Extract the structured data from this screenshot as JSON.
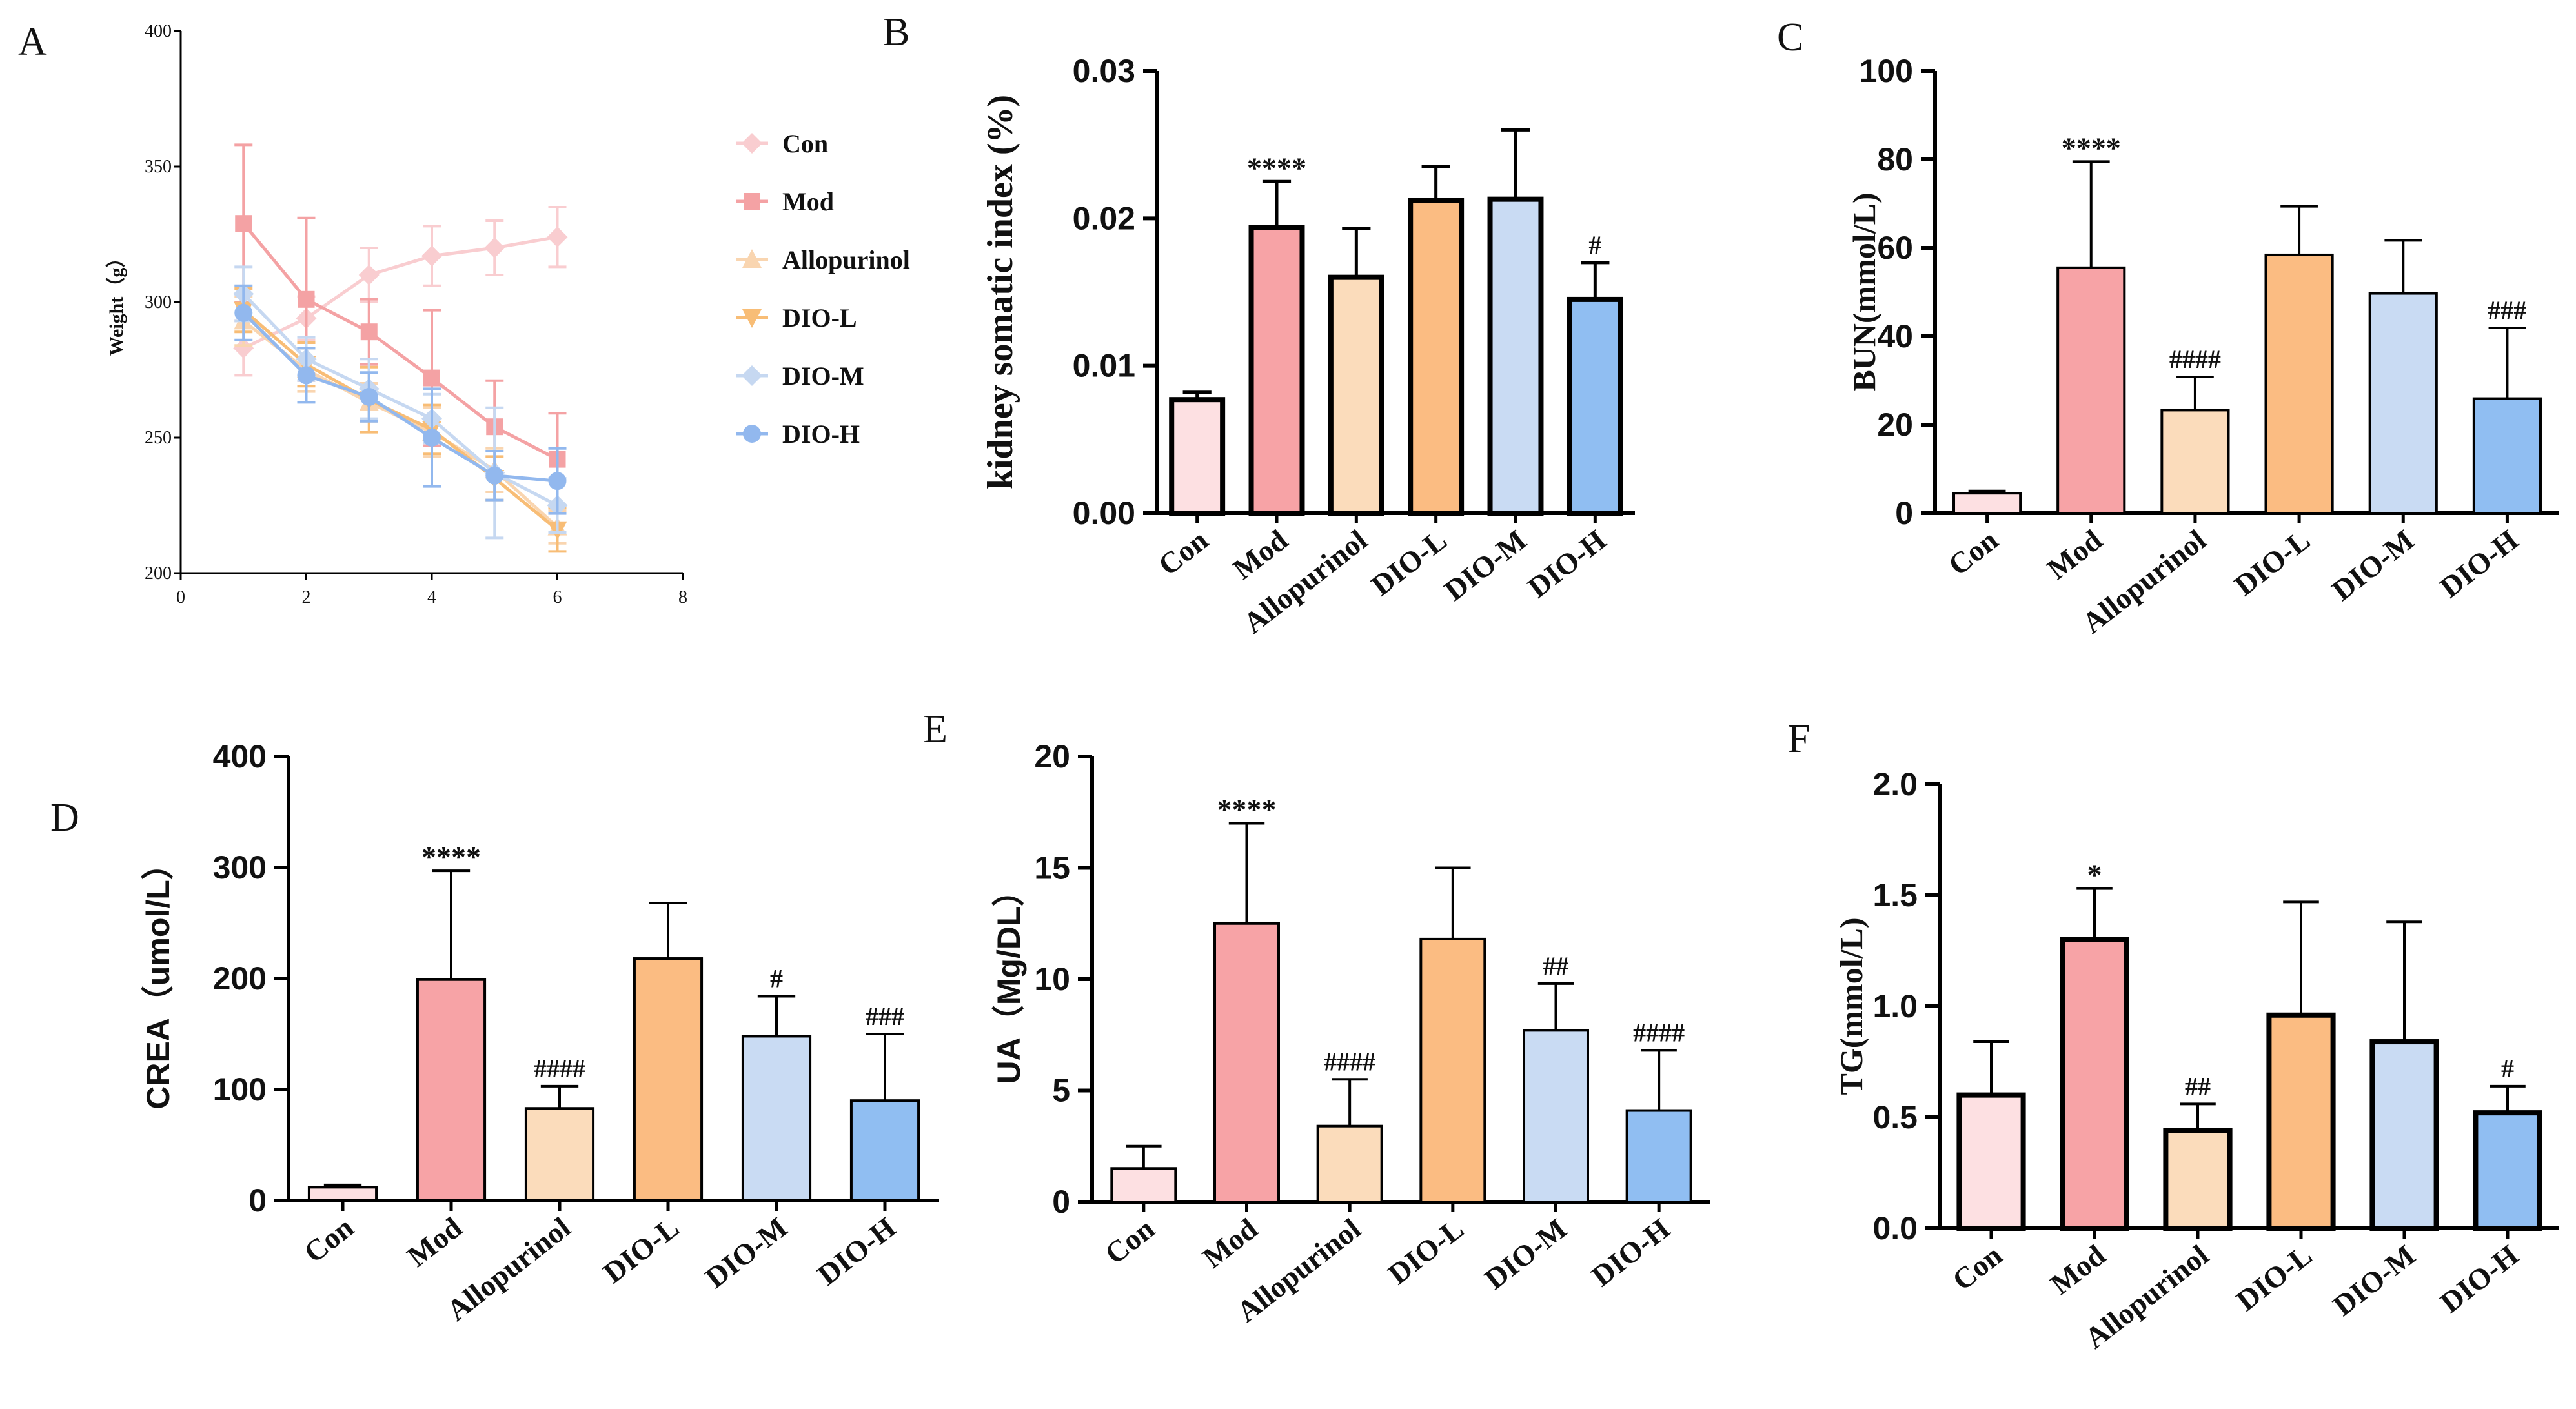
{
  "colors": {
    "Con": "#fde0e2",
    "Mod": "#f7a3a6",
    "Allopurinol": "#fbdcbb",
    "DIO-L": "#fbbc82",
    "DIO-M": "#c9dbf3",
    "DIO-H": "#90bef2",
    "line_Con": "#f9cdd0",
    "line_Mod": "#f4a2a4",
    "line_Allopurinol": "#f9d5b0",
    "line_DIO-L": "#f8bd76",
    "line_DIO-M": "#c6d8f1",
    "line_DIO-H": "#92b8ee"
  },
  "chart_data": [
    {
      "panel": "A",
      "type": "line",
      "xlabel": "",
      "ylabel": "Weight（g）",
      "xlim": [
        0,
        8
      ],
      "ylim": [
        200,
        400
      ],
      "xticks": [
        "0",
        "2",
        "4",
        "6",
        "8"
      ],
      "yticks": [
        "200",
        "250",
        "300",
        "350",
        "400"
      ],
      "x": [
        1,
        2,
        3,
        4,
        5,
        6
      ],
      "legend_position": "right",
      "series": [
        {
          "name": "Con",
          "marker": "diamond",
          "values": [
            283,
            294,
            310,
            317,
            320,
            324
          ],
          "errors": [
            10,
            8,
            10,
            11,
            10,
            11
          ]
        },
        {
          "name": "Mod",
          "marker": "square",
          "values": [
            329,
            301,
            289,
            272,
            254,
            242
          ],
          "errors": [
            29,
            30,
            12,
            25,
            17,
            17
          ]
        },
        {
          "name": "Allopurinol",
          "marker": "triangle-up",
          "values": [
            293,
            275,
            263,
            252,
            238,
            217
          ],
          "errors": [
            9,
            8,
            7,
            9,
            8,
            6
          ]
        },
        {
          "name": "DIO-L",
          "marker": "triangle-down",
          "values": [
            297,
            277,
            264,
            253,
            235,
            216
          ],
          "errors": [
            8,
            8,
            12,
            9,
            8,
            8
          ]
        },
        {
          "name": "DIO-M",
          "marker": "diamond",
          "values": [
            303,
            279,
            268,
            257,
            237,
            225
          ],
          "errors": [
            10,
            8,
            11,
            9,
            24,
            10
          ]
        },
        {
          "name": "DIO-H",
          "marker": "circle",
          "values": [
            296,
            273,
            265,
            250,
            236,
            234
          ],
          "errors": [
            10,
            10,
            9,
            18,
            9,
            12
          ]
        }
      ]
    },
    {
      "panel": "B",
      "type": "bar",
      "ylabel": "kidney somatic index (%)",
      "ylim": [
        0,
        0.03
      ],
      "yticks": [
        "0.00",
        "0.01",
        "0.02",
        "0.03"
      ],
      "categories": [
        "Con",
        "Mod",
        "Allopurinol",
        "DIO-L",
        "DIO-M",
        "DIO-H"
      ],
      "values": [
        0.0077,
        0.0194,
        0.016,
        0.0212,
        0.0213,
        0.0145
      ],
      "errors": [
        0.0005,
        0.0031,
        0.0033,
        0.0023,
        0.0047,
        0.0025
      ],
      "annotations": [
        "",
        "****",
        "",
        "",
        "",
        "#"
      ]
    },
    {
      "panel": "C",
      "type": "bar",
      "ylabel": "BUN(mmol/L)",
      "ylim": [
        0,
        100
      ],
      "yticks": [
        "0",
        "20",
        "40",
        "60",
        "80",
        "100"
      ],
      "categories": [
        "Con",
        "Mod",
        "Allopurinol",
        "DIO-L",
        "DIO-M",
        "DIO-H"
      ],
      "values": [
        4.5,
        55.5,
        23.3,
        58.4,
        49.7,
        25.9
      ],
      "errors": [
        0.5,
        24,
        7.5,
        11,
        12,
        16
      ],
      "annotations": [
        "",
        "****",
        "####",
        "",
        "",
        "###"
      ]
    },
    {
      "panel": "D",
      "type": "bar",
      "ylabel": "CREA（umol/L）",
      "ylim": [
        0,
        400
      ],
      "yticks": [
        "0",
        "100",
        "200",
        "300",
        "400"
      ],
      "categories": [
        "Con",
        "Mod",
        "Allopurinol",
        "DIO-L",
        "DIO-M",
        "DIO-H"
      ],
      "values": [
        12,
        199,
        83,
        218,
        148,
        90
      ],
      "errors": [
        2,
        98,
        20,
        50,
        36,
        60
      ],
      "annotations": [
        "",
        "****",
        "####",
        "",
        "#",
        "###"
      ]
    },
    {
      "panel": "E",
      "type": "bar",
      "ylabel": "UA（Mg/DL）",
      "ylim": [
        0,
        20
      ],
      "yticks": [
        "0",
        "5",
        "10",
        "15",
        "20"
      ],
      "categories": [
        "Con",
        "Mod",
        "Allopurinol",
        "DIO-L",
        "DIO-M",
        "DIO-H"
      ],
      "values": [
        1.5,
        12.5,
        3.4,
        11.8,
        7.7,
        4.1
      ],
      "errors": [
        1.0,
        4.5,
        2.1,
        3.2,
        2.1,
        2.7
      ],
      "annotations": [
        "",
        "****",
        "####",
        "",
        "##",
        "####"
      ]
    },
    {
      "panel": "F",
      "type": "bar",
      "ylabel": "TG(mmol/L)",
      "ylim": [
        0,
        2.0
      ],
      "yticks": [
        "0.0",
        "0.5",
        "1.0",
        "1.5",
        "2.0"
      ],
      "categories": [
        "Con",
        "Mod",
        "Allopurinol",
        "DIO-L",
        "DIO-M",
        "DIO-H"
      ],
      "values": [
        0.6,
        1.3,
        0.44,
        0.96,
        0.84,
        0.52
      ],
      "errors": [
        0.24,
        0.23,
        0.12,
        0.51,
        0.54,
        0.12
      ],
      "annotations": [
        "",
        "*",
        "##",
        "",
        "",
        "#"
      ]
    }
  ]
}
